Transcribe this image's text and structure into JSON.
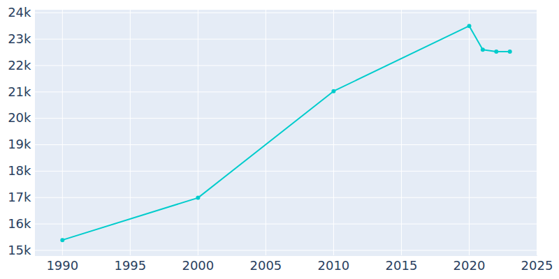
{
  "chart_data": {
    "type": "line",
    "x": [
      1990,
      2000,
      2010,
      2020,
      2021,
      2022,
      2023
    ],
    "values": [
      15390,
      16990,
      21030,
      23500,
      22600,
      22530,
      22530
    ],
    "color": "#00cccc",
    "marker": "circle",
    "xlim": [
      1988,
      2025
    ],
    "xticks": [
      1990,
      1995,
      2000,
      2005,
      2010,
      2015,
      2020,
      2025
    ],
    "ylim": [
      14800,
      24100
    ],
    "yticks": [
      {
        "value": 15000,
        "label": "15k"
      },
      {
        "value": 16000,
        "label": "16k"
      },
      {
        "value": 17000,
        "label": "17k"
      },
      {
        "value": 18000,
        "label": "18k"
      },
      {
        "value": 19000,
        "label": "19k"
      },
      {
        "value": 20000,
        "label": "20k"
      },
      {
        "value": 21000,
        "label": "21k"
      },
      {
        "value": 22000,
        "label": "22k"
      },
      {
        "value": 23000,
        "label": "23k"
      },
      {
        "value": 24000,
        "label": "24k"
      }
    ],
    "grid": true
  }
}
